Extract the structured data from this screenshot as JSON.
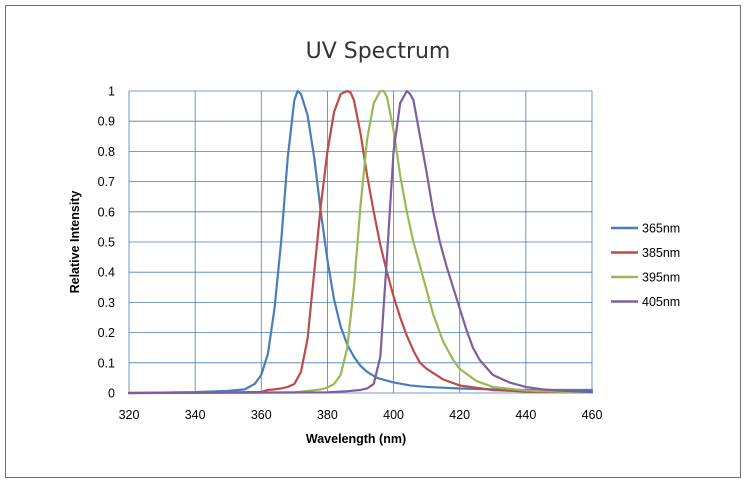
{
  "chart_data": {
    "type": "line",
    "title": "UV Spectrum",
    "xlabel": "Wavelength (nm)",
    "ylabel": "Relative Intensity",
    "xlim": [
      320,
      460
    ],
    "ylim": [
      0,
      1
    ],
    "xticks": [
      320,
      340,
      360,
      380,
      400,
      420,
      440,
      460
    ],
    "yticks": [
      0,
      0.1,
      0.2,
      0.3,
      0.4,
      0.5,
      0.6,
      0.7,
      0.8,
      0.9,
      1
    ],
    "ytick_labels": [
      "0",
      "0.1",
      "0.2",
      "0.3",
      "0.4",
      "0.5",
      "0.6",
      "0.7",
      "0.8",
      "0.9",
      "1"
    ],
    "grid": true,
    "legend_position": "right",
    "series": [
      {
        "name": "365nm",
        "color": "#4a7ebb",
        "x": [
          320,
          340,
          350,
          355,
          358,
          360,
          362,
          364,
          366,
          368,
          370,
          371,
          372,
          374,
          376,
          378,
          380,
          382,
          384,
          386,
          388,
          390,
          392,
          395,
          400,
          405,
          410,
          420,
          430,
          440,
          450,
          460
        ],
        "y": [
          0,
          0.003,
          0.007,
          0.012,
          0.03,
          0.06,
          0.13,
          0.28,
          0.5,
          0.78,
          0.97,
          1.0,
          0.99,
          0.92,
          0.78,
          0.6,
          0.44,
          0.31,
          0.22,
          0.16,
          0.12,
          0.09,
          0.07,
          0.05,
          0.035,
          0.025,
          0.02,
          0.015,
          0.012,
          0.01,
          0.01,
          0.01
        ]
      },
      {
        "name": "385nm",
        "color": "#be4b48",
        "x": [
          320,
          360,
          362,
          364,
          366,
          368,
          370,
          372,
          374,
          376,
          378,
          380,
          382,
          384,
          386,
          387,
          388,
          390,
          392,
          394,
          396,
          398,
          400,
          402,
          404,
          406,
          408,
          410,
          415,
          420,
          430,
          440,
          450,
          460
        ],
        "y": [
          0,
          0.003,
          0.01,
          0.012,
          0.015,
          0.02,
          0.03,
          0.07,
          0.18,
          0.4,
          0.62,
          0.8,
          0.93,
          0.99,
          1.0,
          0.995,
          0.97,
          0.86,
          0.72,
          0.6,
          0.49,
          0.4,
          0.32,
          0.25,
          0.19,
          0.14,
          0.1,
          0.08,
          0.045,
          0.025,
          0.01,
          0.005,
          0.003,
          0.002
        ]
      },
      {
        "name": "395nm",
        "color": "#98b954",
        "x": [
          320,
          370,
          375,
          378,
          380,
          382,
          384,
          386,
          388,
          390,
          392,
          394,
          396,
          397,
          398,
          400,
          402,
          404,
          406,
          408,
          410,
          412,
          415,
          418,
          420,
          425,
          430,
          440,
          450,
          460
        ],
        "y": [
          0,
          0.002,
          0.008,
          0.012,
          0.018,
          0.03,
          0.06,
          0.15,
          0.35,
          0.62,
          0.84,
          0.96,
          1.0,
          1.0,
          0.98,
          0.87,
          0.72,
          0.6,
          0.5,
          0.42,
          0.34,
          0.26,
          0.17,
          0.11,
          0.08,
          0.04,
          0.02,
          0.008,
          0.004,
          0.002
        ]
      },
      {
        "name": "405nm",
        "color": "#7d5fa0",
        "x": [
          320,
          380,
          386,
          390,
          392,
          394,
          396,
          398,
          400,
          402,
          404,
          405,
          406,
          408,
          410,
          412,
          414,
          416,
          418,
          420,
          422,
          424,
          426,
          430,
          435,
          440,
          445,
          450,
          460
        ],
        "y": [
          0,
          0.002,
          0.006,
          0.01,
          0.015,
          0.03,
          0.12,
          0.45,
          0.8,
          0.96,
          1.0,
          0.99,
          0.97,
          0.85,
          0.73,
          0.6,
          0.5,
          0.42,
          0.35,
          0.28,
          0.21,
          0.15,
          0.11,
          0.06,
          0.035,
          0.02,
          0.012,
          0.008,
          0.003
        ]
      }
    ]
  }
}
